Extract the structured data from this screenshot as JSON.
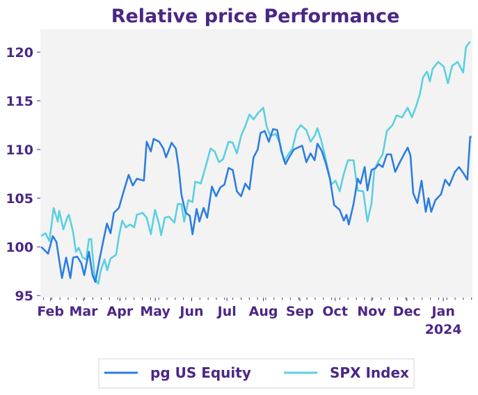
{
  "chart_data": {
    "type": "line",
    "title": "Relative price Performance",
    "xlabel": "",
    "ylabel": "",
    "ylim": [
      94.8,
      122.3
    ],
    "yticks": [
      95,
      100,
      105,
      110,
      115,
      120
    ],
    "x_unit": "days since 2023-01-31",
    "xlim": [
      -7,
      360
    ],
    "xticks": [
      {
        "day": 1,
        "label": "Feb"
      },
      {
        "day": 29,
        "label": "Mar"
      },
      {
        "day": 60,
        "label": "Apr"
      },
      {
        "day": 90,
        "label": "May"
      },
      {
        "day": 121,
        "label": "Jun"
      },
      {
        "day": 151,
        "label": "Jul"
      },
      {
        "day": 182,
        "label": "Aug"
      },
      {
        "day": 213,
        "label": "Sep"
      },
      {
        "day": 243,
        "label": "Oct"
      },
      {
        "day": 274,
        "label": "Nov"
      },
      {
        "day": 304,
        "label": "Dec"
      },
      {
        "day": 335,
        "label": "Jan",
        "sublabel": "2024"
      }
    ],
    "grid": false,
    "legend_position": "bottom",
    "background": "#f3f3f3",
    "series": [
      {
        "name": "pg US Equity",
        "color": "#2b7de1",
        "t": [
          0,
          25,
          42,
          55,
          75,
          90,
          105,
          115,
          130,
          145,
          155,
          172,
          185,
          195,
          210,
          225,
          237,
          250,
          262,
          280,
          295,
          315,
          330,
          345,
          370,
          380,
          395,
          405,
          425,
          440,
          450,
          470,
          485,
          495,
          505,
          520,
          535,
          545,
          560,
          570,
          585,
          598,
          615,
          630,
          645,
          660,
          675,
          690,
          705,
          720,
          735,
          750,
          765,
          780,
          790,
          805,
          820,
          835,
          850,
          865,
          880,
          895,
          910,
          940,
          955,
          970,
          985,
          995,
          1010,
          1025,
          1040,
          1055,
          1075,
          1090,
          1100,
          1108,
          1125,
          1140,
          1150,
          1165,
          1175,
          1190,
          1205,
          1215,
          1230,
          1245,
          1260,
          1275,
          1290,
          1305,
          1320,
          1330,
          1340,
          1355,
          1370,
          1385,
          1395,
          1405,
          1420,
          1440,
          1455,
          1470,
          1490,
          1505,
          1520,
          1535,
          1545,
          1550
        ],
        "values": [
          100.0,
          99.3,
          101.1,
          100.5,
          96.8,
          98.9,
          96.8,
          98.9,
          99.0,
          98.3,
          97.1,
          99.5,
          97.1,
          96.4,
          98.7,
          100.8,
          102.4,
          101.4,
          103.5,
          104.0,
          105.5,
          107.4,
          106.3,
          107.0,
          106.8,
          110.8,
          109.8,
          111.1,
          110.8,
          110.1,
          109.2,
          110.7,
          110.1,
          108.2,
          105.4,
          103.5,
          103.2,
          101.3,
          103.9,
          102.6,
          104.0,
          103.0,
          106.2,
          105.2,
          106.1,
          106.4,
          108.1,
          107.9,
          105.7,
          105.2,
          106.5,
          105.9,
          109.2,
          110.0,
          111.7,
          111.9,
          110.8,
          112.1,
          112.0,
          109.8,
          108.5,
          109.3,
          110.0,
          110.4,
          108.7,
          109.6,
          108.9,
          110.6,
          109.9,
          108.6,
          107.0,
          104.3,
          103.8,
          102.7,
          103.3,
          102.3,
          104.4,
          107.0,
          106.5,
          108.2,
          105.8,
          107.9,
          108.1,
          108.5,
          108.2,
          109.5,
          109.5,
          107.7,
          108.6,
          109.4,
          110.2,
          109.4,
          105.5,
          104.5,
          106.8,
          103.6,
          105.0,
          103.6,
          104.8,
          105.4,
          106.9,
          106.3,
          107.7,
          108.2,
          107.6,
          106.9,
          111.3,
          111.3
        ]
      },
      {
        "name": "SPX Index",
        "color": "#5ad0e0",
        "t": [
          0,
          15,
          30,
          45,
          60,
          65,
          80,
          95,
          100,
          115,
          125,
          135,
          150,
          162,
          172,
          180,
          193,
          205,
          215,
          228,
          238,
          250,
          270,
          280,
          292,
          305,
          320,
          335,
          345,
          365,
          380,
          395,
          410,
          425,
          432,
          445,
          460,
          480,
          492,
          505,
          515,
          530,
          545,
          555,
          575,
          590,
          610,
          625,
          640,
          655,
          675,
          690,
          705,
          720,
          735,
          750,
          765,
          780,
          800,
          812,
          825,
          845,
          860,
          875,
          890,
          905,
          920,
          935,
          955,
          970,
          985,
          995,
          1010,
          1020,
          1035,
          1045,
          1060,
          1075,
          1090,
          1105,
          1125,
          1140,
          1160,
          1175,
          1190,
          1200,
          1215,
          1230,
          1245,
          1265,
          1280,
          1300,
          1320,
          1335,
          1350,
          1365,
          1375,
          1390,
          1400,
          1410,
          1430,
          1450,
          1465,
          1480,
          1500,
          1520,
          1530,
          1545
        ],
        "values": [
          101.1,
          101.4,
          100.6,
          104.0,
          102.6,
          103.7,
          101.8,
          103.1,
          103.3,
          101.5,
          99.5,
          99.9,
          98.9,
          98.7,
          100.8,
          100.8,
          96.8,
          96.2,
          97.6,
          98.7,
          97.6,
          98.8,
          99.2,
          101.1,
          102.7,
          102.0,
          102.3,
          102.0,
          103.3,
          103.5,
          103.0,
          101.3,
          103.8,
          102.3,
          101.2,
          103.0,
          103.1,
          102.5,
          104.4,
          104.4,
          102.6,
          104.8,
          104.6,
          106.7,
          106.5,
          108.0,
          110.1,
          109.8,
          108.7,
          109.0,
          110.8,
          110.7,
          109.6,
          111.4,
          112.4,
          113.6,
          113.1,
          113.7,
          114.3,
          112.4,
          111.4,
          111.6,
          110.6,
          108.8,
          109.5,
          110.1,
          111.9,
          112.5,
          112.0,
          110.8,
          111.4,
          112.2,
          110.8,
          109.6,
          107.7,
          106.4,
          106.8,
          105.7,
          107.5,
          108.9,
          108.9,
          105.8,
          105.7,
          102.6,
          104.5,
          107.9,
          108.8,
          109.5,
          111.9,
          112.5,
          113.5,
          113.3,
          114.3,
          113.3,
          114.4,
          115.8,
          117.4,
          118.0,
          117.0,
          118.3,
          119.0,
          118.5,
          116.8,
          118.6,
          119.0,
          117.9,
          120.5,
          121.1
        ]
      }
    ]
  }
}
